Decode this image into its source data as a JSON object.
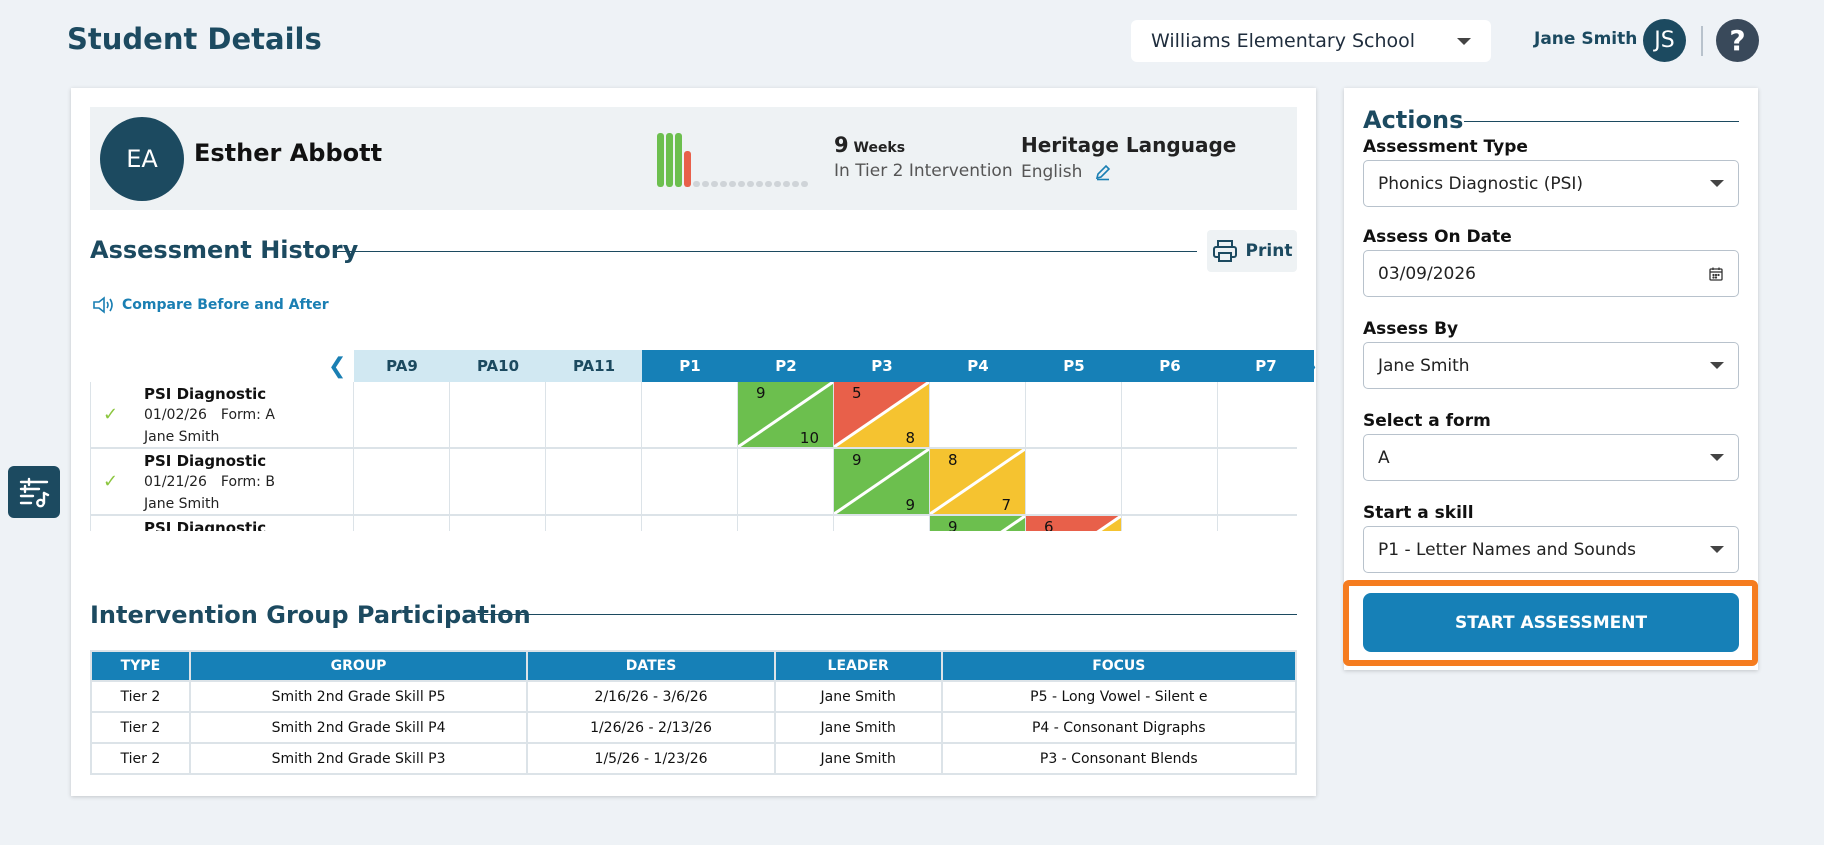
{
  "header": {
    "title": "Student Details",
    "school": "Williams Elementary School",
    "user_name": "Jane Smith",
    "user_initials": "JS",
    "help_label": "?"
  },
  "student": {
    "initials": "EA",
    "name": "Esther Abbott",
    "weeks_count": "9",
    "weeks_unit": "Weeks",
    "weeks_status": "In Tier 2 Intervention",
    "weekly_bars": [
      "green",
      "green",
      "green",
      "red",
      "grey",
      "grey",
      "grey",
      "grey",
      "grey",
      "grey",
      "grey",
      "grey",
      "grey",
      "grey",
      "grey",
      "grey",
      "grey"
    ],
    "heritage_label": "Heritage Language",
    "heritage_value": "English"
  },
  "assessment_history": {
    "title": "Assessment History",
    "print_label": "Print",
    "compare_label": "Compare Before and After",
    "columns": [
      "PA9",
      "PA10",
      "PA11",
      "P1",
      "P2",
      "P3",
      "P4",
      "P5",
      "P6",
      "P7"
    ],
    "rows": [
      {
        "title": "PSI Diagnostic",
        "date": "01/02/26",
        "form": "Form: A",
        "leader": "Jane Smith",
        "cells": [
          null,
          null,
          null,
          null,
          {
            "top": "9",
            "bottom": "10",
            "top_color": "#6cbf4e",
            "bottom_color": "#6cbf4e"
          },
          {
            "top": "5",
            "bottom": "8",
            "top_color": "#e8604a",
            "bottom_color": "#f5c330"
          },
          null,
          null,
          null,
          null
        ]
      },
      {
        "title": "PSI Diagnostic",
        "date": "01/21/26",
        "form": "Form: B",
        "leader": "Jane Smith",
        "cells": [
          null,
          null,
          null,
          null,
          null,
          {
            "top": "9",
            "bottom": "9",
            "top_color": "#6cbf4e",
            "bottom_color": "#6cbf4e"
          },
          {
            "top": "8",
            "bottom": "7",
            "top_color": "#f5c330",
            "bottom_color": "#f5c330"
          },
          null,
          null,
          null
        ]
      },
      {
        "title": "PSI Diagnostic",
        "date": "",
        "form": "",
        "leader": "",
        "cells": [
          null,
          null,
          null,
          null,
          null,
          null,
          {
            "top": "9",
            "bottom": "",
            "top_color": "#6cbf4e",
            "bottom_color": "#6cbf4e"
          },
          {
            "top": "6",
            "bottom": "",
            "top_color": "#e8604a",
            "bottom_color": "#f5c330"
          },
          null,
          null
        ]
      }
    ]
  },
  "intervention": {
    "title": "Intervention Group Participation",
    "headers": [
      "TYPE",
      "GROUP",
      "DATES",
      "LEADER",
      "FOCUS"
    ],
    "rows": [
      [
        "Tier 2",
        "Smith 2nd Grade Skill P5",
        "2/16/26 - 3/6/26",
        "Jane Smith",
        "P5 - Long Vowel - Silent e"
      ],
      [
        "Tier 2",
        "Smith 2nd Grade Skill P4",
        "1/26/26 - 2/13/26",
        "Jane Smith",
        "P4 - Consonant Digraphs"
      ],
      [
        "Tier 2",
        "Smith 2nd Grade Skill P3",
        "1/5/26 - 1/23/26",
        "Jane Smith",
        "P3 - Consonant Blends"
      ]
    ]
  },
  "actions": {
    "title": "Actions",
    "assessment_type_label": "Assessment Type",
    "assessment_type_value": "Phonics Diagnostic (PSI)",
    "assess_date_label": "Assess On Date",
    "assess_date_value": "03/09/2026",
    "assess_by_label": "Assess By",
    "assess_by_value": "Jane Smith",
    "form_label": "Select a form",
    "form_value": "A",
    "skill_label": "Start a skill",
    "skill_value": "P1 - Letter Names and Sounds",
    "start_button": "START ASSESSMENT"
  },
  "colors": {
    "primary": "#1680b7",
    "navy": "#1c4a60",
    "highlight": "#f57c1f",
    "green": "#6cbf4e",
    "red": "#e8604a",
    "yellow": "#f5c330"
  }
}
